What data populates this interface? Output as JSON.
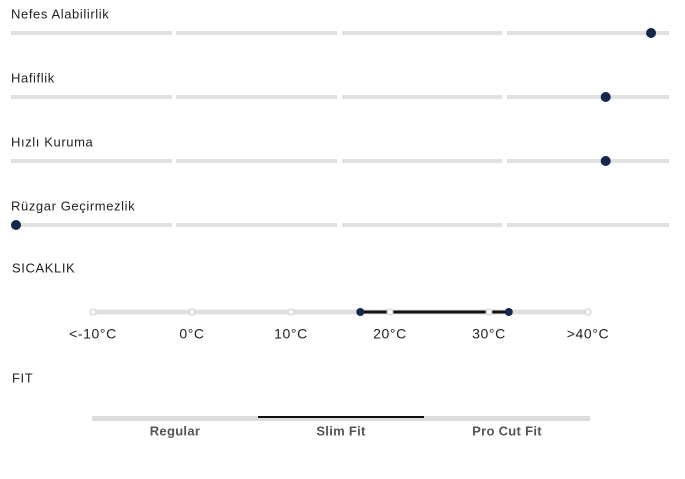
{
  "attributes": [
    {
      "label": "Nefes Alabilirlik",
      "level": 98
    },
    {
      "label": "Hafiflik",
      "level": 91
    },
    {
      "label": "Hızlı Kuruma",
      "level": 91
    },
    {
      "label": "Rüzgar Geçirmezlik",
      "level": 0
    }
  ],
  "temperature": {
    "title": "SICAKLIK",
    "ticks": [
      {
        "value": -10,
        "label": "<-10°C"
      },
      {
        "value": 0,
        "label": "0°C"
      },
      {
        "value": 10,
        "label": "10°C"
      },
      {
        "value": 20,
        "label": "20°C"
      },
      {
        "value": 30,
        "label": "30°C"
      },
      {
        "value": 40,
        "label": ">40°C"
      }
    ],
    "range": [
      17,
      32
    ]
  },
  "fit": {
    "title": "FIT",
    "options": [
      "Regular",
      "Slim Fit",
      "Pro Cut Fit"
    ],
    "selected": 1
  }
}
